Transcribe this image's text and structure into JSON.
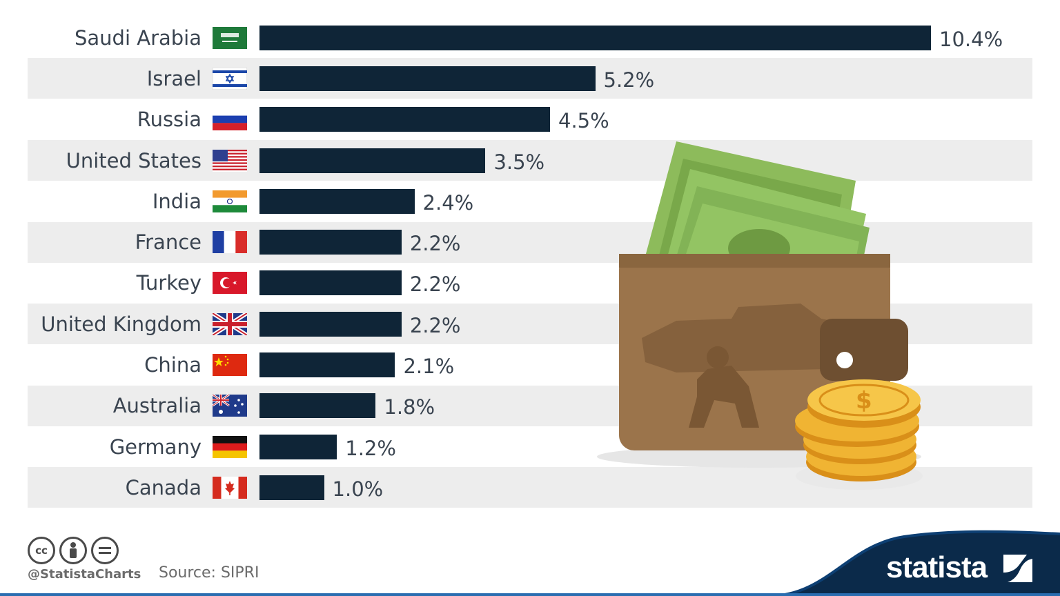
{
  "chart_data": {
    "type": "bar",
    "orientation": "horizontal",
    "categories": [
      "Saudi Arabia",
      "Israel",
      "Russia",
      "United States",
      "India",
      "France",
      "Turkey",
      "United Kingdom",
      "China",
      "Australia",
      "Germany",
      "Canada"
    ],
    "values": [
      10.4,
      5.2,
      4.5,
      3.5,
      2.4,
      2.2,
      2.2,
      2.2,
      2.1,
      1.8,
      1.2,
      1.0
    ],
    "value_labels": [
      "10.4%",
      "5.2%",
      "4.5%",
      "3.5%",
      "2.4%",
      "2.2%",
      "2.2%",
      "2.2%",
      "2.1%",
      "1.8%",
      "1.2%",
      "1.0%"
    ],
    "flags": [
      "saudi-arabia-flag",
      "israel-flag",
      "russia-flag",
      "united-states-flag",
      "india-flag",
      "france-flag",
      "turkey-flag",
      "united-kingdom-flag",
      "china-flag",
      "australia-flag",
      "germany-flag",
      "canada-flag"
    ],
    "xlim": [
      0,
      10.4
    ],
    "grid": false,
    "bar_color": "#0f2537",
    "band_color": "#ededed"
  },
  "footer": {
    "handle": "@StatistaCharts",
    "source": "Source: SIPRI",
    "brand": "statista",
    "cc_icons": [
      "cc-icon",
      "by-icon",
      "nd-icon"
    ]
  },
  "colors": {
    "navy": "#0f2537",
    "wave": "#0b2a4a",
    "band": "#ededed"
  }
}
